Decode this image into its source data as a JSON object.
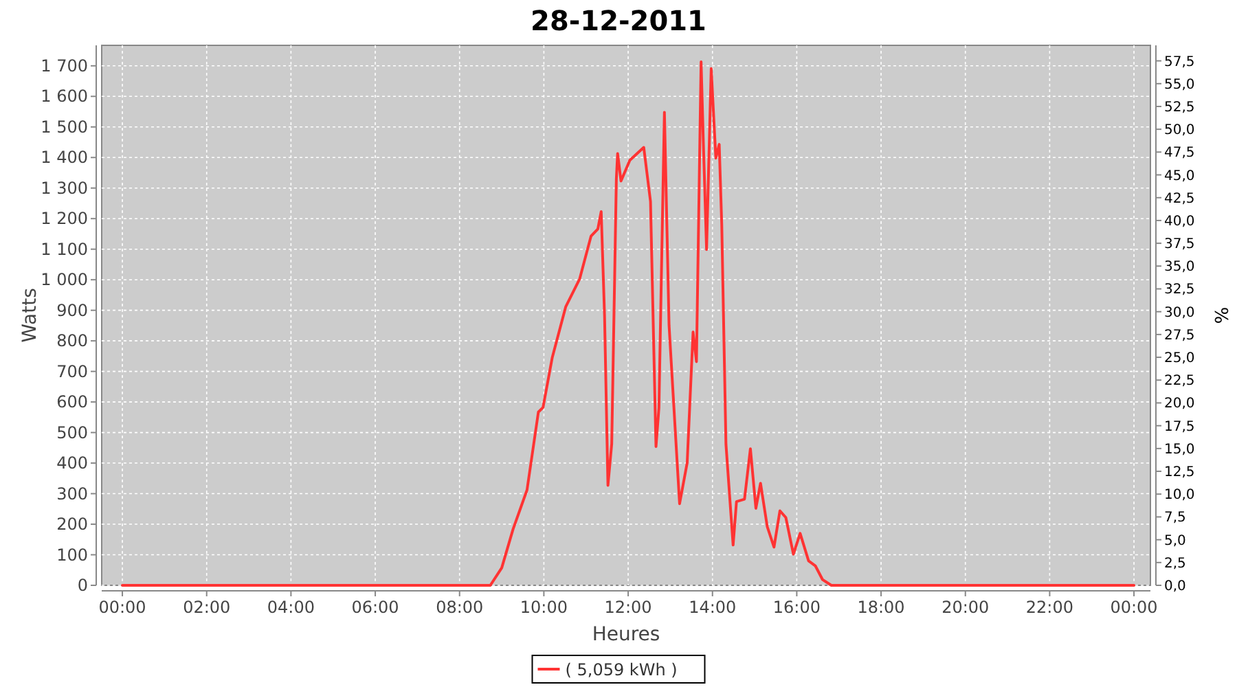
{
  "chart_data": {
    "type": "line",
    "title": "28-12-2011",
    "xlabel": "Heures",
    "ylabel": "Watts",
    "y2label": "%",
    "xlim": [
      -0.49,
      24.39
    ],
    "ylim": [
      0,
      1767
    ],
    "y2lim": [
      0,
      59.2
    ],
    "xticks": [
      {
        "value": 0,
        "label": "00:00"
      },
      {
        "value": 2,
        "label": "02:00"
      },
      {
        "value": 4,
        "label": "04:00"
      },
      {
        "value": 6,
        "label": "06:00"
      },
      {
        "value": 8,
        "label": "08:00"
      },
      {
        "value": 10,
        "label": "10:00"
      },
      {
        "value": 12,
        "label": "12:00"
      },
      {
        "value": 14,
        "label": "14:00"
      },
      {
        "value": 16,
        "label": "16:00"
      },
      {
        "value": 18,
        "label": "18:00"
      },
      {
        "value": 20,
        "label": "20:00"
      },
      {
        "value": 22,
        "label": "22:00"
      },
      {
        "value": 24,
        "label": "00:00"
      }
    ],
    "yticks": [
      0,
      100,
      200,
      300,
      400,
      500,
      600,
      700,
      800,
      900,
      {
        "value": 1000,
        "label": "1 000"
      },
      {
        "value": 1100,
        "label": "1 100"
      },
      {
        "value": 1200,
        "label": "1 200"
      },
      {
        "value": 1300,
        "label": "1 300"
      },
      {
        "value": 1400,
        "label": "1 400"
      },
      {
        "value": 1500,
        "label": "1 500"
      },
      {
        "value": 1600,
        "label": "1 600"
      },
      {
        "value": 1700,
        "label": "1 700"
      }
    ],
    "y2ticks": [
      {
        "value": 0,
        "label": "0,0"
      },
      {
        "value": 2.5,
        "label": "2,5"
      },
      {
        "value": 5,
        "label": "5,0"
      },
      {
        "value": 7.5,
        "label": "7,5"
      },
      {
        "value": 10,
        "label": "10,0"
      },
      {
        "value": 12.5,
        "label": "12,5"
      },
      {
        "value": 15,
        "label": "15,0"
      },
      {
        "value": 17.5,
        "label": "17,5"
      },
      {
        "value": 20,
        "label": "20,0"
      },
      {
        "value": 22.5,
        "label": "22,5"
      },
      {
        "value": 25,
        "label": "25,0"
      },
      {
        "value": 27.5,
        "label": "27,5"
      },
      {
        "value": 30,
        "label": "30,0"
      },
      {
        "value": 32.5,
        "label": "32,5"
      },
      {
        "value": 35,
        "label": "35,0"
      },
      {
        "value": 37.5,
        "label": "37,5"
      },
      {
        "value": 40,
        "label": "40,0"
      },
      {
        "value": 42.5,
        "label": "42,5"
      },
      {
        "value": 45,
        "label": "45,0"
      },
      {
        "value": 47.5,
        "label": "47,5"
      },
      {
        "value": 50,
        "label": "50,0"
      },
      {
        "value": 52.5,
        "label": "52,5"
      },
      {
        "value": 55,
        "label": "55,0"
      },
      {
        "value": 57.5,
        "label": "57,5"
      }
    ],
    "grid": true,
    "legend": "bottom",
    "line_style": "solid",
    "marker": "none",
    "series": [
      {
        "name": "( 5,059 kWh )",
        "color": "#ff3333",
        "x": [
          0,
          8.73,
          9.0,
          9.27,
          9.6,
          9.87,
          9.98,
          10.2,
          10.52,
          10.85,
          11.12,
          11.28,
          11.36,
          11.44,
          11.52,
          11.61,
          11.72,
          11.75,
          11.83,
          12.04,
          12.37,
          12.53,
          12.66,
          12.73,
          12.86,
          12.97,
          13.22,
          13.4,
          13.54,
          13.62,
          13.73,
          13.78,
          13.86,
          13.97,
          14.08,
          14.16,
          14.22,
          14.32,
          14.49,
          14.57,
          14.76,
          14.9,
          15.03,
          15.14,
          15.3,
          15.46,
          15.6,
          15.74,
          15.92,
          16.08,
          16.28,
          16.44,
          16.61,
          16.82,
          24
        ],
        "values": [
          0,
          0,
          57,
          184,
          312,
          567,
          582,
          746,
          912,
          1003,
          1143,
          1166,
          1223,
          881,
          327,
          463,
          1331,
          1413,
          1323,
          1391,
          1433,
          1256,
          454,
          581,
          1548,
          851,
          267,
          401,
          829,
          732,
          1713,
          1466,
          1099,
          1691,
          1398,
          1443,
          1181,
          462,
          132,
          274,
          282,
          447,
          252,
          334,
          192,
          125,
          244,
          222,
          102,
          170,
          80,
          64,
          19,
          0,
          0
        ]
      }
    ]
  }
}
